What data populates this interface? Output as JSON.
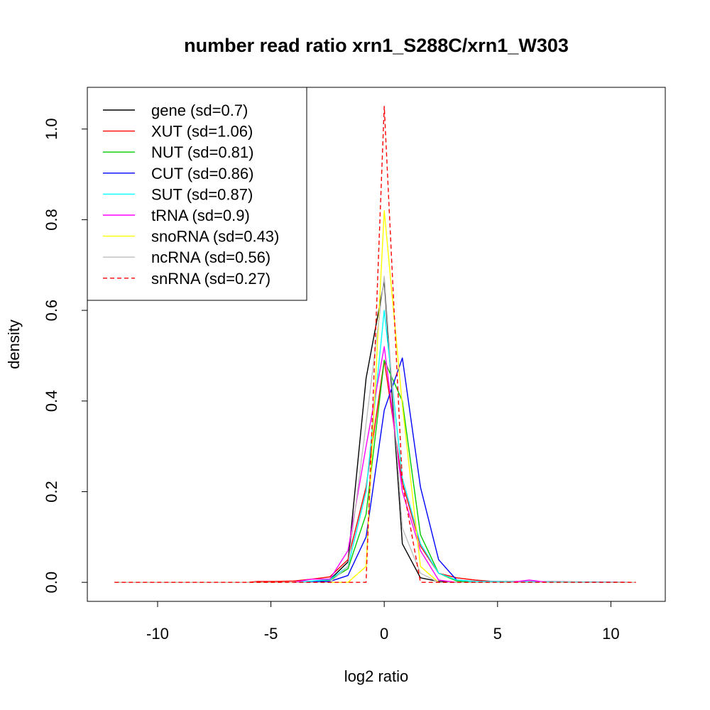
{
  "chart_data": {
    "type": "line",
    "title": "number read ratio xrn1_S288C/xrn1_W303",
    "xlabel": "log2 ratio",
    "ylabel": "density",
    "xlim": [
      -13.1,
      12.4
    ],
    "ylim": [
      -0.042,
      1.092
    ],
    "x_ticks": [
      -10,
      -5,
      0,
      5,
      10
    ],
    "x_tick_labels": [
      "-10",
      "-5",
      "0",
      "5",
      "10"
    ],
    "y_ticks": [
      0,
      0.2,
      0.4,
      0.6,
      0.8,
      1.0
    ],
    "y_tick_labels": [
      "0.0",
      "0.2",
      "0.4",
      "0.6",
      "0.8",
      "1.0"
    ],
    "grid": false,
    "legend_position": "top-left",
    "series": [
      {
        "name": "gene (sd=0.7)",
        "color": "#000000",
        "dash": "solid",
        "x": [
          -11.9,
          -6.0,
          -4.0,
          -3.2,
          -2.4,
          -1.6,
          -0.8,
          0.0,
          0.8,
          1.6,
          2.4,
          3.2,
          4.0,
          11.1
        ],
        "y": [
          0,
          0,
          0,
          0.002,
          0.006,
          0.045,
          0.45,
          0.665,
          0.085,
          0.01,
          0.002,
          0,
          0,
          0
        ]
      },
      {
        "name": "XUT (sd=1.06)",
        "color": "#ff0000",
        "dash": "solid",
        "x": [
          -11.9,
          -6.0,
          -5.6,
          -4.8,
          -4.0,
          -3.2,
          -2.4,
          -1.6,
          -0.8,
          0.0,
          0.8,
          1.6,
          2.4,
          3.2,
          4.0,
          4.8,
          5.6,
          11.1
        ],
        "y": [
          0,
          0,
          0.002,
          0.002,
          0.003,
          0.007,
          0.012,
          0.05,
          0.21,
          0.49,
          0.22,
          0.08,
          0.02,
          0.01,
          0.005,
          0.002,
          0.002,
          0
        ]
      },
      {
        "name": "NUT (sd=0.81)",
        "color": "#00cd00",
        "dash": "solid",
        "x": [
          -11.9,
          -4.0,
          -3.2,
          -2.4,
          -1.6,
          -0.8,
          0.0,
          0.8,
          1.6,
          2.4,
          3.2,
          4.0,
          11.1
        ],
        "y": [
          0,
          0,
          0.002,
          0.005,
          0.03,
          0.15,
          0.49,
          0.4,
          0.105,
          0.02,
          0.003,
          0,
          0
        ]
      },
      {
        "name": "CUT (sd=0.86)",
        "color": "#0000ff",
        "dash": "solid",
        "x": [
          -11.9,
          -4.0,
          -3.2,
          -2.4,
          -1.6,
          -0.8,
          0.0,
          0.8,
          1.6,
          2.4,
          3.2,
          4.0,
          11.1
        ],
        "y": [
          0,
          0,
          0.002,
          0.002,
          0.015,
          0.1,
          0.38,
          0.495,
          0.21,
          0.05,
          0.005,
          0.002,
          0
        ]
      },
      {
        "name": "SUT (sd=0.87)",
        "color": "#00ffff",
        "dash": "solid",
        "x": [
          -11.9,
          -4.0,
          -3.2,
          -2.4,
          -1.6,
          -0.8,
          0.0,
          0.8,
          1.6,
          2.4,
          3.2,
          4.0,
          11.1
        ],
        "y": [
          0,
          0,
          0.003,
          0.006,
          0.035,
          0.2,
          0.6,
          0.23,
          0.085,
          0.02,
          0.005,
          0.002,
          0
        ]
      },
      {
        "name": "tRNA (sd=0.9)",
        "color": "#ff00ff",
        "dash": "solid",
        "x": [
          -11.9,
          -4.0,
          -3.2,
          -2.4,
          -1.6,
          -0.8,
          0.0,
          0.8,
          1.6,
          2.4,
          3.2,
          4.0,
          5.6,
          6.4,
          7.2,
          11.1
        ],
        "y": [
          0,
          0,
          0.007,
          0.007,
          0.07,
          0.3,
          0.52,
          0.2,
          0.07,
          0.005,
          0,
          0,
          0,
          0.005,
          0,
          0
        ]
      },
      {
        "name": "snoRNA (sd=0.43)",
        "color": "#ffff00",
        "dash": "solid",
        "x": [
          -11.9,
          -1.6,
          -0.8,
          0.0,
          0.8,
          1.6,
          2.4,
          11.1
        ],
        "y": [
          0,
          0,
          0.035,
          0.82,
          0.39,
          0.035,
          0,
          0
        ]
      },
      {
        "name": "ncRNA (sd=0.56)",
        "color": "#bebebe",
        "dash": "solid",
        "x": [
          -11.9,
          -2.4,
          -1.6,
          -0.8,
          0.0,
          0.8,
          1.6,
          2.4,
          11.1
        ],
        "y": [
          0,
          0,
          0.035,
          0.35,
          0.675,
          0.12,
          0.02,
          0,
          0
        ]
      },
      {
        "name": "snRNA (sd=0.27)",
        "color": "#ff0000",
        "dash": "dashed",
        "x": [
          -11.9,
          -0.8,
          0.0,
          0.8,
          1.6,
          11.1
        ],
        "y": [
          0,
          0,
          1.05,
          0.22,
          0,
          0
        ]
      }
    ]
  }
}
